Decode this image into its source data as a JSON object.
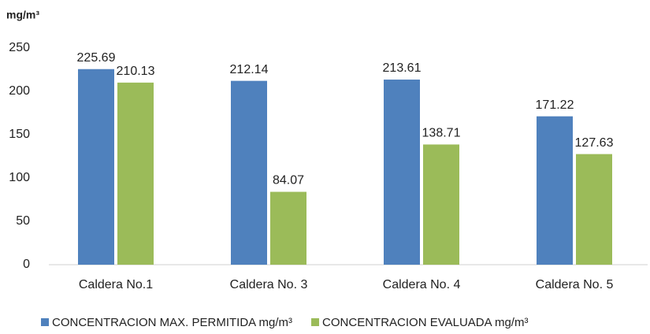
{
  "chart_data": {
    "type": "bar",
    "y_axis_label": "mg/m³",
    "categories": [
      "Caldera No.1",
      "Caldera No. 3",
      "Caldera No. 4",
      "Caldera No. 5"
    ],
    "series": [
      {
        "name": "CONCENTRACION MAX. PERMITIDA mg/m³",
        "color": "#4f81bd",
        "values": [
          225.69,
          212.14,
          213.61,
          171.22
        ]
      },
      {
        "name": "CONCENTRACION EVALUADA mg/m³",
        "color": "#9bbb59",
        "values": [
          210.13,
          84.07,
          138.71,
          127.63
        ]
      }
    ],
    "ylim": [
      0,
      250
    ],
    "yticks": [
      0,
      50,
      100,
      150,
      200,
      250
    ],
    "grid": false,
    "legend": "bottom"
  }
}
